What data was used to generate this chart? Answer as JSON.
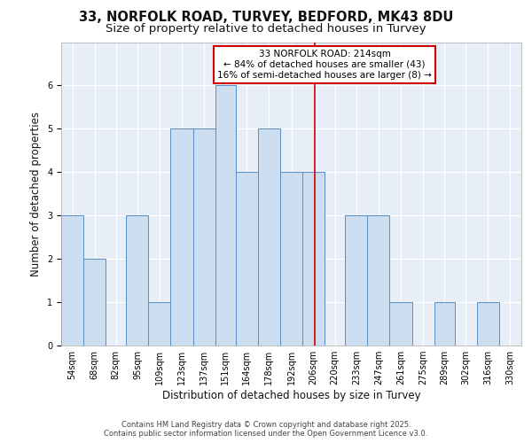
{
  "title_line1": "33, NORFOLK ROAD, TURVEY, BEDFORD, MK43 8DU",
  "title_line2": "Size of property relative to detached houses in Turvey",
  "xlabel": "Distribution of detached houses by size in Turvey",
  "ylabel": "Number of detached properties",
  "footnote": "Contains HM Land Registry data © Crown copyright and database right 2025.\nContains public sector information licensed under the Open Government Licence v3.0.",
  "bin_labels": [
    "54sqm",
    "68sqm",
    "82sqm",
    "95sqm",
    "109sqm",
    "123sqm",
    "137sqm",
    "151sqm",
    "164sqm",
    "178sqm",
    "192sqm",
    "206sqm",
    "220sqm",
    "233sqm",
    "247sqm",
    "261sqm",
    "275sqm",
    "289sqm",
    "302sqm",
    "316sqm",
    "330sqm"
  ],
  "bar_values": [
    3,
    2,
    0,
    3,
    1,
    5,
    5,
    6,
    4,
    5,
    4,
    4,
    0,
    3,
    3,
    1,
    0,
    1,
    0,
    1,
    0
  ],
  "bar_color": "#ccddf0",
  "bar_edge_color": "#5b8ec4",
  "bin_edges": [
    54,
    68,
    82,
    95,
    109,
    123,
    137,
    151,
    164,
    178,
    192,
    206,
    220,
    233,
    247,
    261,
    275,
    289,
    302,
    316,
    330,
    344
  ],
  "reference_line_x": 214,
  "annotation_text": "33 NORFOLK ROAD: 214sqm\n← 84% of detached houses are smaller (43)\n16% of semi-detached houses are larger (8) →",
  "annotation_box_color": "#ffffff",
  "annotation_box_edge": "#cc0000",
  "annotation_line_color": "#cc0000",
  "ylim_max": 7,
  "yticks": [
    0,
    1,
    2,
    3,
    4,
    5,
    6,
    7
  ],
  "plot_bg_color": "#e8eef8",
  "fig_bg_color": "#ffffff",
  "grid_color": "#ffffff",
  "title_fontsize": 10.5,
  "subtitle_fontsize": 9.5,
  "axis_label_fontsize": 8.5,
  "tick_fontsize": 7,
  "annot_fontsize": 7.5,
  "footnote_fontsize": 6
}
